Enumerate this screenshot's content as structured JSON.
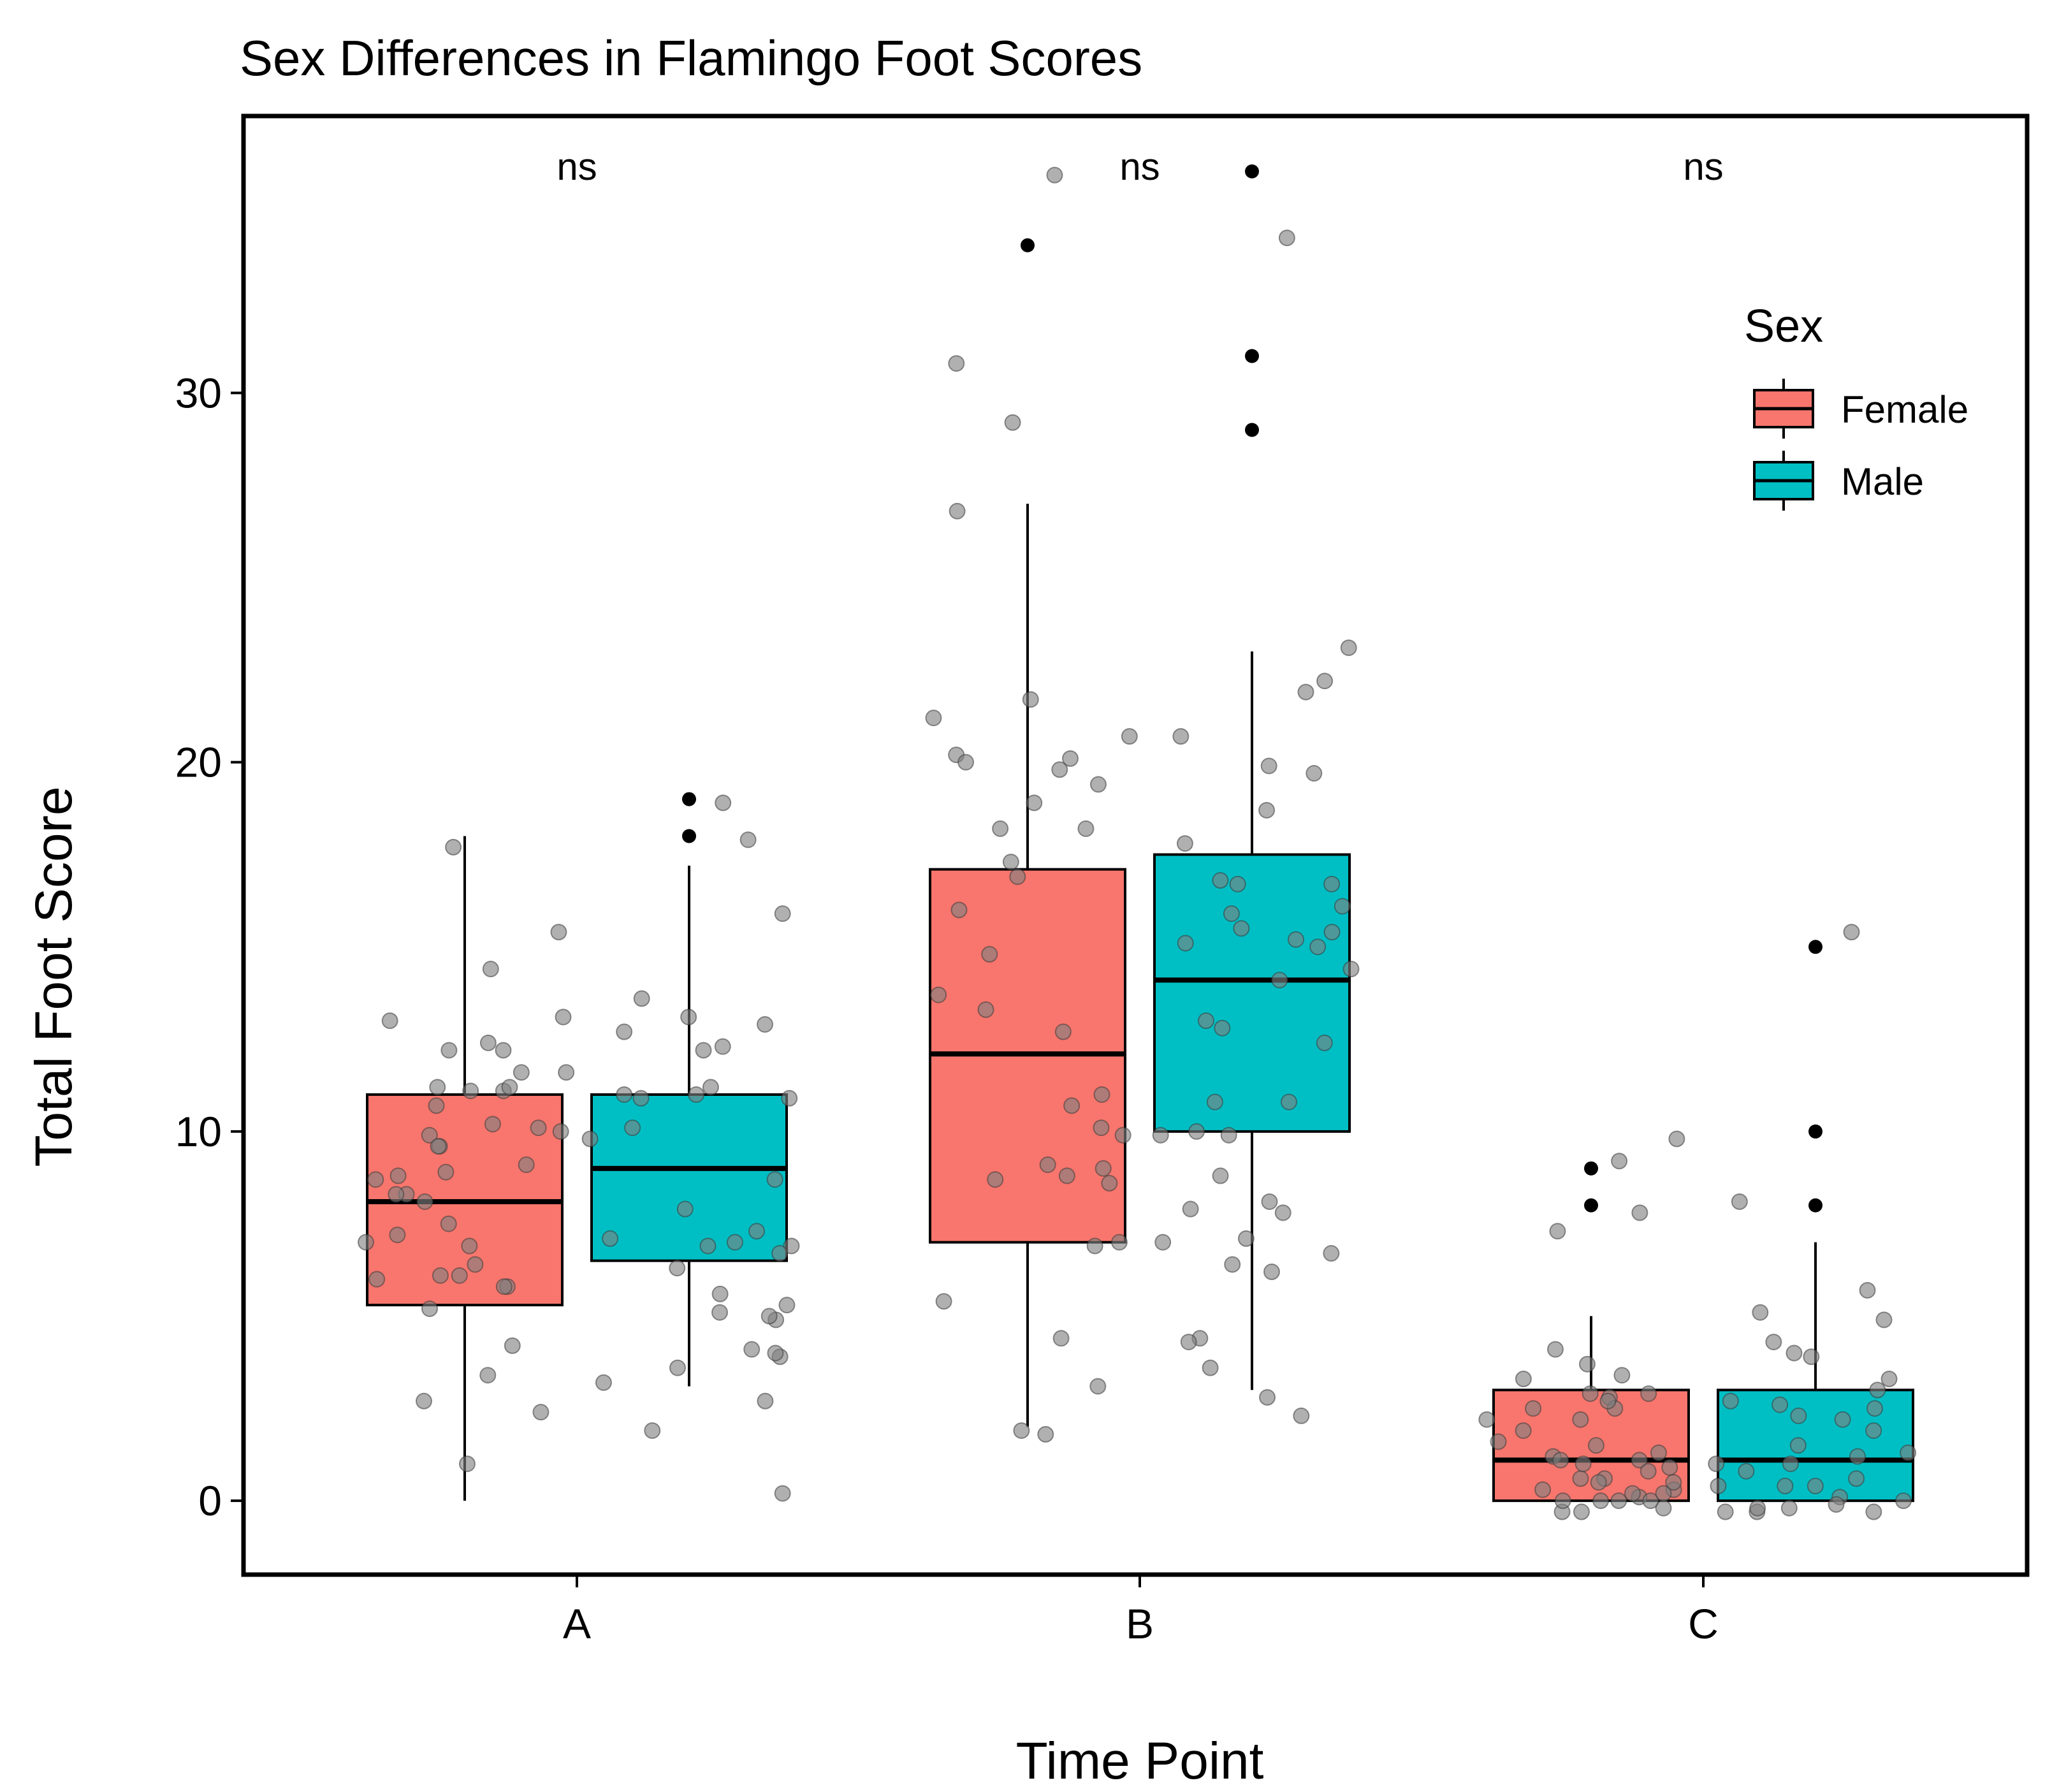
{
  "chart_data": {
    "type": "box",
    "title": "Sex Differences in Flamingo Foot Scores",
    "xlabel": "Time Point",
    "ylabel": "Total Foot Score",
    "categories": [
      "A",
      "B",
      "C"
    ],
    "ylim": [
      -2,
      37.5
    ],
    "yticks": [
      0,
      10,
      20,
      30
    ],
    "grid": false,
    "legend": {
      "title": "Sex",
      "position": "top-right",
      "entries": [
        "Female",
        "Male"
      ]
    },
    "significance": [
      "ns",
      "ns",
      "ns"
    ],
    "series": [
      {
        "name": "Female",
        "color": "#F8766D",
        "boxes": [
          {
            "category": "A",
            "min": 0,
            "q1": 5.3,
            "median": 8.1,
            "q3": 11,
            "max": 18,
            "outliers": [],
            "points": [
              14.4,
              11.6,
              11.1,
              11.1,
              10.1,
              9.9,
              9.6,
              9.1,
              8.3,
              7.0,
              6.9,
              6.4,
              6.1,
              5.8,
              5.2,
              3.4,
              2.4,
              1.0,
              13.1,
              12.2,
              12.4,
              11.2,
              10.2,
              10.0,
              8.9,
              8.7,
              8.1,
              5.8,
              2.7,
              17.7,
              15.4,
              13.0,
              12.2,
              11.6,
              10.7,
              9.6,
              8.8,
              8.3,
              7.5,
              6.0,
              4.2,
              11.2,
              7.2,
              6.1
            ]
          },
          {
            "category": "B",
            "min": 2,
            "q1": 7,
            "median": 12.1,
            "q3": 17.1,
            "max": 27,
            "outliers": [
              34
            ],
            "points": [
              35.9,
              30.8,
              29.2,
              26.8,
              21.7,
              21.2,
              20.7,
              20.1,
              19.4,
              18.2,
              17.3,
              16.9,
              16.0,
              13.7,
              13.3,
              12.7,
              11.0,
              10.7,
              10.1,
              9.9,
              9.1,
              8.8,
              8.7,
              8.6,
              7.0,
              6.9,
              5.4,
              4.4,
              3.1,
              1.9,
              1.8,
              20.2,
              20.0,
              19.8,
              18.9,
              18.2,
              14.8,
              9.0
            ]
          },
          {
            "category": "C",
            "min": 0,
            "q1": 0,
            "median": 1.1,
            "q3": 3,
            "max": 5,
            "outliers": [
              9,
              8
            ],
            "points": [
              9.2,
              7.3,
              4.1,
              3.4,
              3.3,
              2.9,
              2.8,
              2.5,
              2.2,
              1.5,
              1.2,
              1.1,
              0.9,
              0.6,
              0.3,
              0.1,
              -0.2,
              9.8,
              7.8,
              3.7,
              2.7,
              2.2,
              1.6,
              1.3,
              1.0,
              0.6,
              0.3,
              0.0,
              -0.3,
              2.9,
              2.5,
              1.9,
              1.1,
              0.5,
              0.2,
              0.0,
              -0.3,
              0.0,
              0.0,
              0.5,
              0.8,
              0.2
            ]
          }
        ]
      },
      {
        "name": "Male",
        "color": "#00BFC4",
        "boxes": [
          {
            "category": "A",
            "min": 3.1,
            "q1": 6.5,
            "median": 9.0,
            "q3": 11,
            "max": 17.2,
            "outliers": [
              19,
              18
            ],
            "points": [
              18.9,
              17.9,
              15.9,
              13.6,
              13.1,
              12.9,
              12.7,
              12.3,
              12.2,
              11.2,
              11.0,
              10.9,
              10.1,
              9.8,
              7.9,
              7.3,
              7.0,
              6.9,
              6.7,
              6.3,
              5.6,
              5.3,
              5.1,
              4.9,
              4.1,
              3.9,
              3.6,
              3.2,
              2.7,
              1.9,
              0.2,
              11.0,
              7.1,
              6.9,
              4.0,
              5.0,
              10.9,
              8.7
            ]
          },
          {
            "category": "B",
            "min": 3,
            "q1": 10,
            "median": 14.1,
            "q3": 17.5,
            "max": 23,
            "outliers": [
              36,
              31,
              29
            ],
            "points": [
              34.2,
              23.1,
              22.2,
              21.9,
              20.7,
              19.9,
              19.7,
              18.7,
              17.8,
              16.8,
              16.7,
              16.7,
              16.1,
              15.9,
              15.5,
              15.4,
              15.2,
              15.1,
              15.0,
              14.4,
              14.1,
              13.0,
              12.8,
              12.4,
              10.8,
              10.8,
              10.0,
              9.9,
              9.9,
              8.8,
              8.1,
              7.9,
              7.8,
              7.1,
              7.0,
              6.7,
              6.4,
              6.2,
              4.4,
              4.3,
              3.6,
              2.8,
              2.3
            ]
          },
          {
            "category": "C",
            "min": 0,
            "q1": 0,
            "median": 1.1,
            "q3": 3,
            "max": 7,
            "outliers": [
              15,
              10,
              8
            ],
            "points": [
              15.4,
              8.1,
              5.7,
              5.1,
              4.9,
              4.3,
              4.0,
              3.9,
              3.0,
              2.7,
              2.6,
              2.5,
              2.2,
              1.9,
              1.5,
              1.3,
              1.2,
              1.0,
              0.6,
              0.4,
              0.1,
              -0.1,
              -0.3,
              -0.3,
              3.3,
              2.3,
              1.0,
              0.4,
              0.0,
              -0.2,
              -0.3,
              -0.2,
              0.8,
              0.4
            ]
          }
        ]
      }
    ]
  }
}
